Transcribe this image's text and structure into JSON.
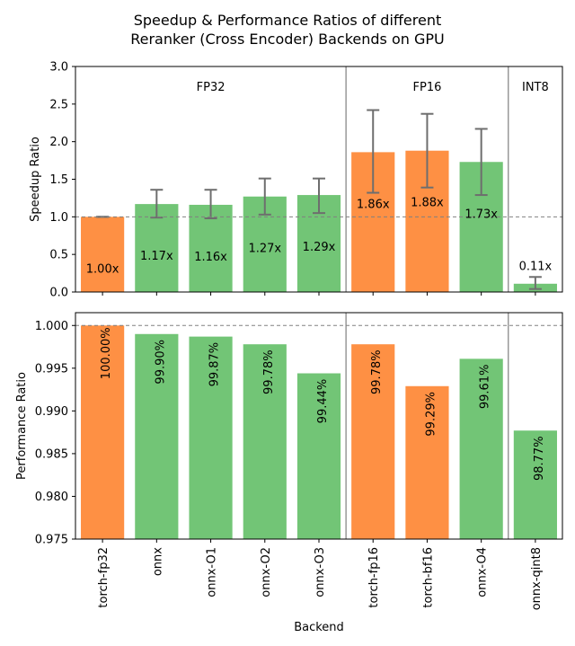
{
  "chart_data": [
    {
      "type": "bar",
      "title_lines": [
        "Speedup & Performance Ratios of different",
        "Reranker (Cross Encoder) Backends on GPU"
      ],
      "ylabel": "Speedup Ratio",
      "ylim": [
        0,
        3.0
      ],
      "yticks": [
        "0.0",
        "0.5",
        "1.0",
        "1.5",
        "2.0",
        "2.5",
        "3.0"
      ],
      "reference_line": 1.0,
      "group_labels": [
        "FP32",
        "FP16",
        "INT8"
      ],
      "categories": [
        "torch-fp32",
        "onnx",
        "onnx-O1",
        "onnx-O2",
        "onnx-O3",
        "torch-fp16",
        "torch-bf16",
        "onnx-O4",
        "onnx-qint8"
      ],
      "values": [
        1.0,
        1.17,
        1.16,
        1.27,
        1.29,
        1.86,
        1.88,
        1.73,
        0.11
      ],
      "labels": [
        "1.00x",
        "1.17x",
        "1.16x",
        "1.27x",
        "1.29x",
        "1.86x",
        "1.88x",
        "1.73x",
        "0.11x"
      ],
      "err_low": [
        1.0,
        0.99,
        0.98,
        1.03,
        1.05,
        1.32,
        1.39,
        1.29,
        0.04
      ],
      "err_high": [
        1.0,
        1.36,
        1.36,
        1.51,
        1.51,
        2.42,
        2.37,
        2.17,
        0.2
      ],
      "kind": [
        "torch",
        "onnx",
        "onnx",
        "onnx",
        "onnx",
        "torch",
        "torch",
        "onnx",
        "onnx"
      ]
    },
    {
      "type": "bar",
      "ylabel": "Performance Ratio",
      "xlabel": "Backend",
      "ylim": [
        0.975,
        1.0015
      ],
      "yticks": [
        "0.975",
        "0.980",
        "0.985",
        "0.990",
        "0.995",
        "1.000"
      ],
      "reference_line": 1.0,
      "categories": [
        "torch-fp32",
        "onnx",
        "onnx-O1",
        "onnx-O2",
        "onnx-O3",
        "torch-fp16",
        "torch-bf16",
        "onnx-O4",
        "onnx-qint8"
      ],
      "values": [
        1.0,
        0.999,
        0.9987,
        0.9978,
        0.9944,
        0.9978,
        0.9929,
        0.9961,
        0.9877
      ],
      "labels": [
        "100.00%",
        "99.90%",
        "99.87%",
        "99.78%",
        "99.44%",
        "99.78%",
        "99.29%",
        "99.61%",
        "98.77%"
      ]
    }
  ],
  "colors": {
    "torch": "#fe9044",
    "onnx": "#72c576",
    "error_bar": "#6e6e6e",
    "reference": "#808080",
    "separator": "#808080"
  }
}
